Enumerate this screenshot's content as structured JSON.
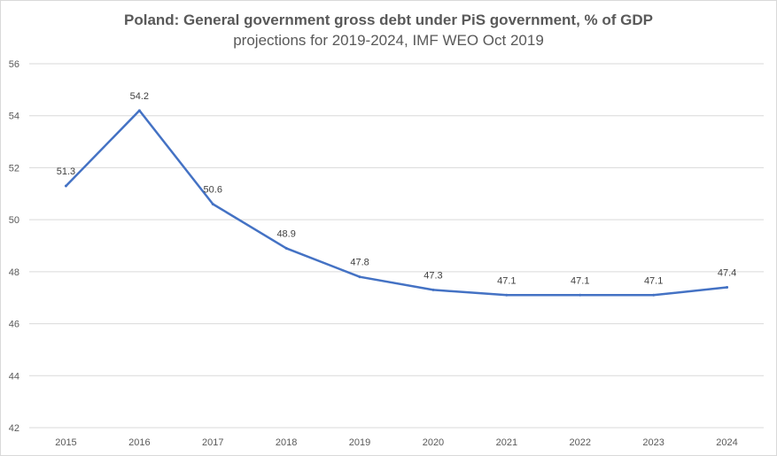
{
  "chart_data": {
    "type": "line",
    "title": "Poland: General government gross debt under PiS government, % of GDP",
    "subtitle": "projections for 2019-2024, IMF WEO Oct 2019",
    "xlabel": "",
    "ylabel": "",
    "categories": [
      "2015",
      "2016",
      "2017",
      "2018",
      "2019",
      "2020",
      "2021",
      "2022",
      "2023",
      "2024"
    ],
    "series": [
      {
        "values": [
          51.3,
          54.2,
          50.6,
          48.9,
          47.8,
          47.3,
          47.1,
          47.1,
          47.1,
          47.4
        ],
        "labels": [
          "51.3",
          "54.2",
          "50.6",
          "48.9",
          "47.8",
          "47.3",
          "47.1",
          "47.1",
          "47.1",
          "47.4"
        ],
        "color": "#4472c4"
      }
    ],
    "ylim": [
      42,
      56
    ],
    "yticks": [
      42,
      44,
      46,
      48,
      50,
      52,
      54,
      56
    ],
    "grid": true,
    "legend": "none"
  }
}
